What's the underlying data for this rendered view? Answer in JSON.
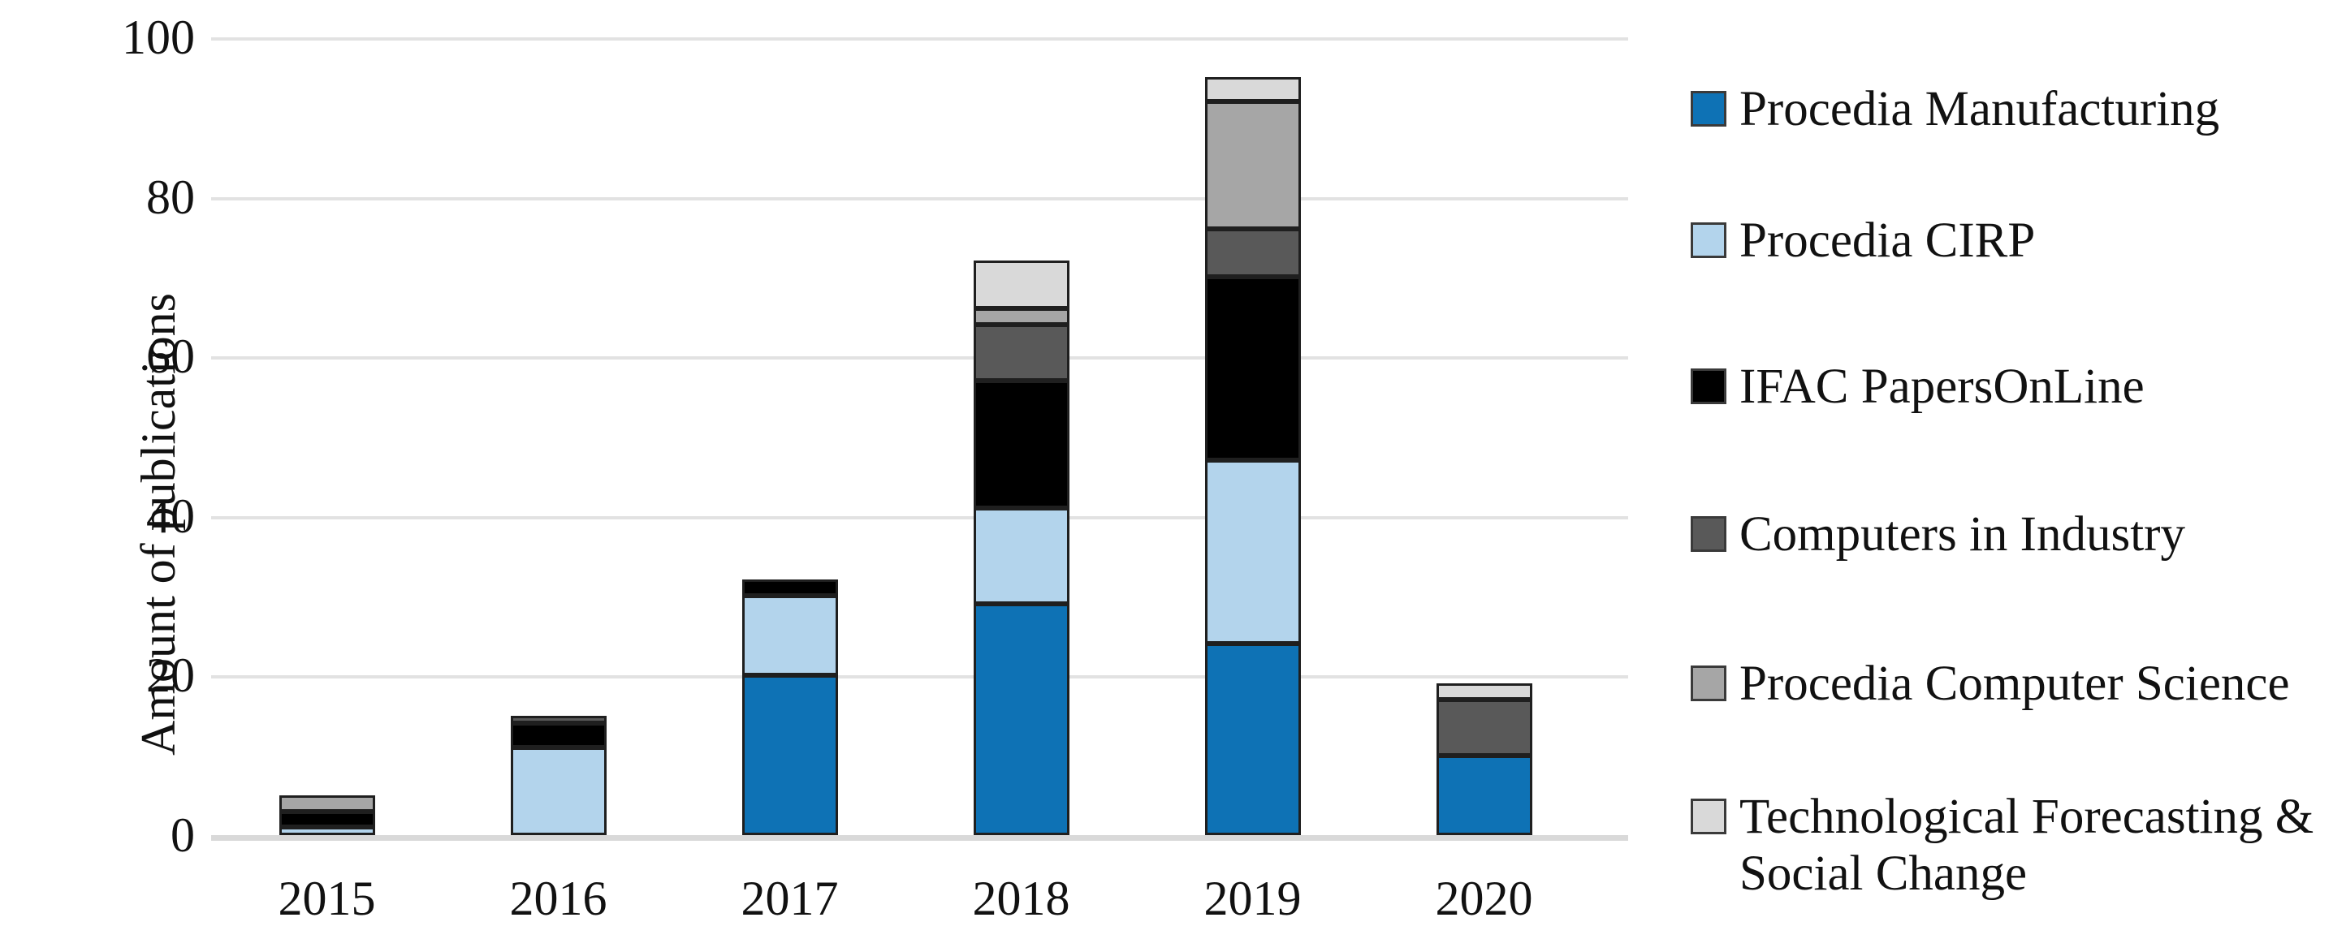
{
  "chart_data": {
    "type": "bar",
    "stacked": true,
    "title": "",
    "xlabel": "",
    "ylabel": "Amount of publications",
    "ylim": [
      0,
      100
    ],
    "y_ticks": [
      0,
      20,
      40,
      60,
      80,
      100
    ],
    "grid": true,
    "legend_position": "right",
    "categories": [
      "2015",
      "2016",
      "2017",
      "2018",
      "2019",
      "2020"
    ],
    "series": [
      {
        "name": "Procedia Manufacturing",
        "color": "#0e72b5",
        "values": [
          0,
          0,
          20,
          29,
          24,
          10
        ]
      },
      {
        "name": "Procedia CIRP",
        "color": "#b3d4ec",
        "values": [
          1,
          11,
          10,
          12,
          23,
          0
        ]
      },
      {
        "name": "IFAC PapersOnLine",
        "color": "#000000",
        "values": [
          2,
          3,
          2,
          16,
          23,
          0
        ]
      },
      {
        "name": "Computers in Industry",
        "color": "#595959",
        "values": [
          0,
          1,
          0,
          7,
          6,
          7
        ]
      },
      {
        "name": "Procedia Computer Science",
        "color": "#a6a6a6",
        "values": [
          2,
          0,
          0,
          2,
          16,
          0
        ]
      },
      {
        "name": "Technological Forecasting & Social Change",
        "color": "#d9d9d9",
        "values": [
          0,
          0,
          0,
          6,
          3,
          2
        ]
      }
    ],
    "totals": [
      5,
      15,
      32,
      72,
      95,
      19
    ],
    "colors": {
      "grid": "#e2e2e2",
      "baseline": "#d9d9d9",
      "segment_border": "#1f1f1f",
      "text": "#111111",
      "background": "#ffffff"
    }
  }
}
